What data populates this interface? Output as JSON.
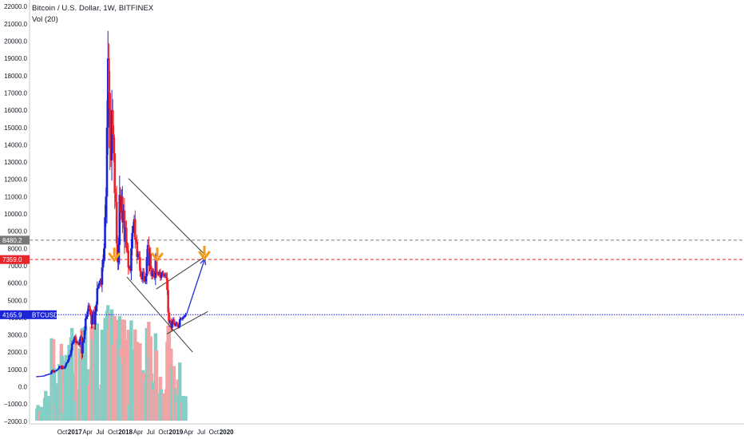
{
  "header": {
    "title": "Bitcoin / U.S. Dollar, 1W, BITFINEX",
    "indicator": "Vol (20)"
  },
  "colors": {
    "up": "#1a23d8",
    "down": "#e8252b",
    "vol_up": "#83cfc6",
    "vol_down": "#f3a3a4",
    "level_red": "#e8252b",
    "level_gray": "#787878",
    "level_blue": "#1a23d8",
    "arrow_orange": "#f59b1b",
    "projection": "#2c3ad6",
    "trendline": "#3c3c3c",
    "axis": "#131722"
  },
  "tags": {
    "gray_level": "8480.2",
    "red_level": "7359.0",
    "price": "4165.9",
    "symbol": "BTCUSD"
  },
  "chart_data": {
    "type": "candlestick",
    "title": "Bitcoin / U.S. Dollar, 1W, BITFINEX",
    "indicator": "Vol (20)",
    "y_ticks": [
      -2000,
      -1000,
      0,
      1000,
      2000,
      3000,
      4000,
      5000,
      6000,
      7000,
      8000,
      9000,
      10000,
      11000,
      12000,
      13000,
      14000,
      15000,
      16000,
      17000,
      18000,
      19000,
      20000,
      21000,
      22000
    ],
    "y_tick_labels": [
      "−2000.0",
      "−1000.0",
      "0.0",
      "1000.0",
      "2000.0",
      "3000.0",
      "4000.0",
      "5000.0",
      "6000.0",
      "7000.0",
      "8000.0",
      "9000.0",
      "10000.0",
      "11000.0",
      "12000.0",
      "13000.0",
      "14000.0",
      "15000.0",
      "16000.0",
      "17000.0",
      "18000.0",
      "19000.0",
      "20000.0",
      "21000.0",
      "22000.0"
    ],
    "ylim": [
      -2000,
      22000
    ],
    "x_labels": [
      {
        "t": 0.0,
        "label": "Oct",
        "bold": false
      },
      {
        "t": 0.25,
        "label": "2017",
        "bold": true
      },
      {
        "t": 0.5,
        "label": "Apr",
        "bold": false
      },
      {
        "t": 0.75,
        "label": "Jul",
        "bold": false
      },
      {
        "t": 1.0,
        "label": "Oct",
        "bold": false
      },
      {
        "t": 1.25,
        "label": "2018",
        "bold": true
      },
      {
        "t": 1.5,
        "label": "Apr",
        "bold": false
      },
      {
        "t": 1.75,
        "label": "Jul",
        "bold": false
      },
      {
        "t": 2.0,
        "label": "Oct",
        "bold": false
      },
      {
        "t": 2.25,
        "label": "2019",
        "bold": true
      },
      {
        "t": 2.5,
        "label": "Apr",
        "bold": false
      },
      {
        "t": 2.75,
        "label": "Jul",
        "bold": false
      },
      {
        "t": 3.0,
        "label": "Oct",
        "bold": false
      },
      {
        "t": 3.25,
        "label": "2020",
        "bold": true
      }
    ],
    "weekly_closes": [
      600,
      610,
      615,
      612,
      620,
      625,
      632,
      640,
      660,
      690,
      700,
      715,
      740,
      750,
      770,
      900,
      960,
      840,
      920,
      905,
      960,
      1000,
      1060,
      1170,
      1190,
      1050,
      1180,
      1080,
      1080,
      1200,
      1350,
      1420,
      1550,
      1780,
      1800,
      2100,
      2500,
      2550,
      2750,
      2900,
      2550,
      2600,
      2500,
      2420,
      2750,
      2900,
      1930,
      2600,
      2750,
      3270,
      3950,
      4050,
      4350,
      4700,
      4500,
      4200,
      3600,
      4150,
      4350,
      3600,
      4350,
      4750,
      5700,
      5800,
      6000,
      6150,
      5900,
      6900,
      7400,
      8000,
      9800,
      11000,
      15000,
      19000,
      17000,
      13800,
      13100,
      16000,
      14600,
      13500,
      11200,
      10700,
      8300,
      7200,
      8200,
      11100,
      10100,
      11000,
      9500,
      10200,
      8400,
      9200,
      8200,
      7900,
      6900,
      6900,
      6700,
      8000,
      8900,
      9300,
      9700,
      8500,
      8400,
      7500,
      7700,
      7500,
      6700,
      6400,
      6200,
      6650,
      6250,
      6100,
      6400,
      7500,
      8200,
      7000,
      7700,
      6800,
      6400,
      6700,
      6500,
      6300,
      7300,
      6600,
      6550,
      6500,
      6650,
      6300,
      6500,
      6600,
      6450,
      6400,
      6500,
      6300,
      5600,
      4300,
      3700,
      3800,
      3400,
      3700,
      3900,
      3600,
      3550,
      3700,
      3650,
      3450,
      3550,
      3900,
      3950,
      3900,
      4000,
      4050,
      4100,
      4200
    ],
    "levels": [
      {
        "name": "resistance",
        "value": 8480.2,
        "style": "dashed",
        "color": "gray"
      },
      {
        "name": "target",
        "value": 7359.0,
        "style": "dashed",
        "color": "red"
      },
      {
        "name": "current",
        "value": 4165.9,
        "style": "dotted",
        "color": "blue",
        "label": "BTCUSD"
      }
    ],
    "trendlines": [
      {
        "name": "upper-wedge",
        "from": {
          "t": 1.31,
          "v": 12050
        },
        "to": {
          "t": 2.82,
          "v": 7650
        }
      },
      {
        "name": "lower-wedge",
        "from": {
          "t": 1.28,
          "v": 6350
        },
        "to": {
          "t": 2.58,
          "v": 2000
        }
      },
      {
        "name": "small-upper",
        "from": {
          "t": 1.86,
          "v": 5650
        },
        "to": {
          "t": 2.86,
          "v": 7600
        }
      },
      {
        "name": "small-lower",
        "from": {
          "t": 2.07,
          "v": 3050
        },
        "to": {
          "t": 2.88,
          "v": 4350
        }
      }
    ],
    "projection": {
      "from": {
        "t": 2.46,
        "v": 4200
      },
      "to": {
        "t": 2.82,
        "v": 7400
      }
    },
    "orange_arrows": [
      {
        "t": 1.03,
        "v": 7500
      },
      {
        "t": 1.88,
        "v": 7500
      },
      {
        "t": 2.812,
        "v": 7600
      }
    ]
  }
}
